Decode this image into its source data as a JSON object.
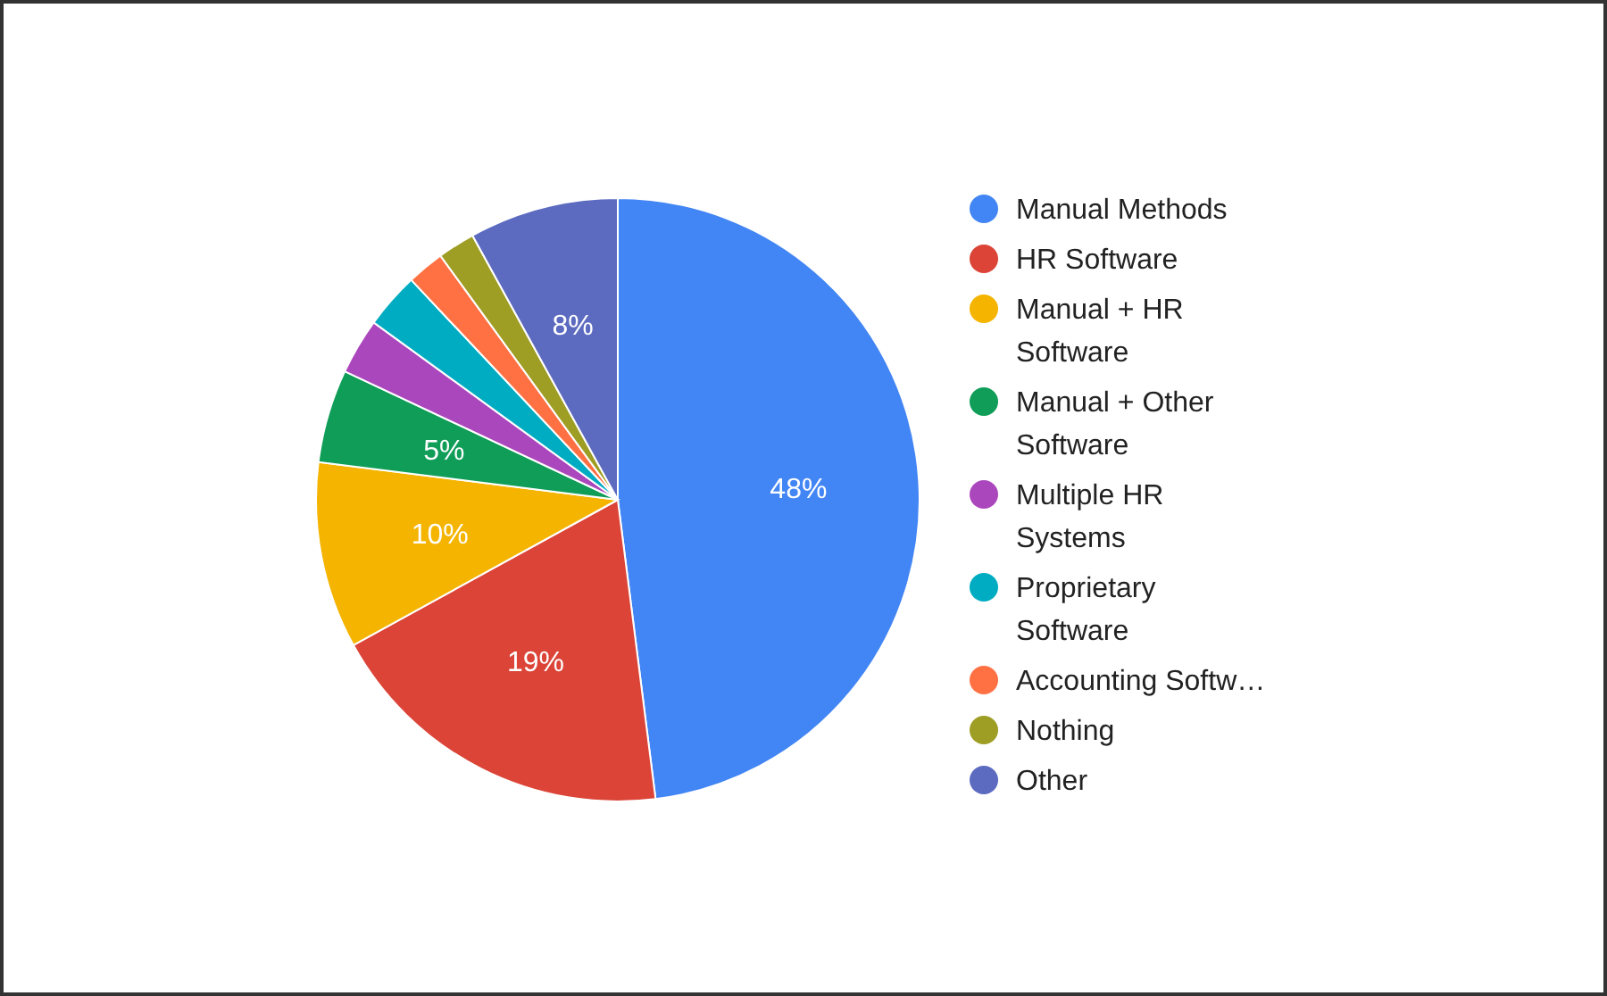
{
  "chart_data": {
    "type": "pie",
    "categories": [
      "Manual Methods",
      "HR Software",
      "Manual + HR Software",
      "Manual + Other Software",
      "Multiple HR Systems",
      "Proprietary Software",
      "Accounting Softw…",
      "Nothing",
      "Other"
    ],
    "values": [
      48,
      19,
      10,
      5,
      3,
      3,
      2,
      2,
      8
    ],
    "colors": [
      "#4285f4",
      "#db4437",
      "#f4b400",
      "#0f9d58",
      "#ab47bc",
      "#00acc1",
      "#ff7043",
      "#9e9d24",
      "#5c6bc0"
    ],
    "value_labels": [
      "48%",
      "19%",
      "10%",
      "5%",
      null,
      null,
      null,
      null,
      "8%"
    ],
    "legend": "right"
  }
}
